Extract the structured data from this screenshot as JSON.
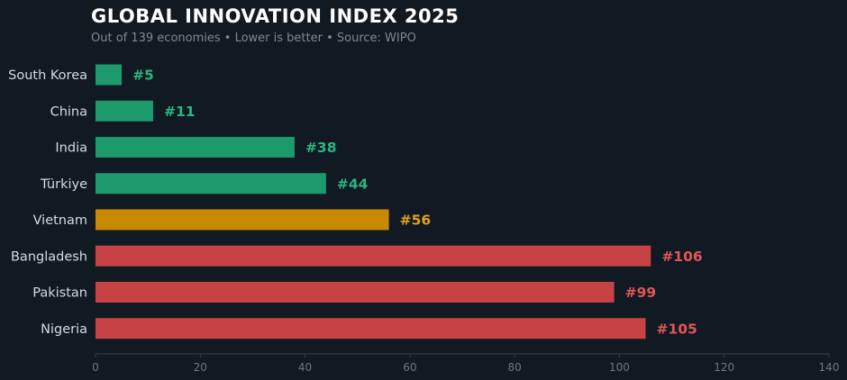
{
  "header": {
    "title": "GLOBAL INNOVATION INDEX 2025",
    "subtitle": "Out of 139 economies  •  Lower is better  •  Source: WIPO"
  },
  "colors": {
    "background": "#111923",
    "good": "#1c9a6c",
    "good_label": "#2bb67f",
    "mid": "#c98a03",
    "mid_label": "#e0a21a",
    "bad": "#c64244",
    "bad_label": "#e25555",
    "axis": "#2c3e4f"
  },
  "chart_data": {
    "type": "bar",
    "orientation": "horizontal",
    "categories": [
      "South Korea",
      "China",
      "India",
      "Türkiye",
      "Vietnam",
      "Bangladesh",
      "Pakistan",
      "Nigeria"
    ],
    "values": [
      5,
      11,
      38,
      44,
      56,
      106,
      99,
      105
    ],
    "value_labels": [
      "#5",
      "#11",
      "#38",
      "#44",
      "#56",
      "#106",
      "#99",
      "#105"
    ],
    "bar_colors": [
      "good",
      "good",
      "good",
      "good",
      "mid",
      "bad",
      "bad",
      "bad"
    ],
    "xlim": [
      0,
      140
    ],
    "xticks": [
      0,
      20,
      40,
      60,
      80,
      100,
      120,
      140
    ],
    "grid": false,
    "legend": "none"
  }
}
